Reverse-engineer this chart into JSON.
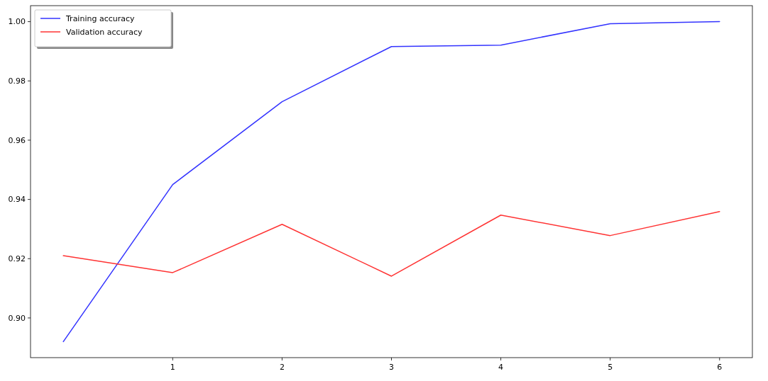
{
  "chart_data": {
    "type": "line",
    "x": [
      0,
      1,
      2,
      3,
      4,
      5,
      6
    ],
    "series": [
      {
        "name": "Training accuracy",
        "color": "#3333ff",
        "values": [
          0.892,
          0.945,
          0.973,
          0.9916,
          0.9921,
          0.9993,
          1.0
        ]
      },
      {
        "name": "Validation accuracy",
        "color": "#ff3333",
        "values": [
          0.921,
          0.9153,
          0.9316,
          0.9141,
          0.9347,
          0.9278,
          0.9359
        ]
      }
    ],
    "xlim": [
      -0.3,
      6.3
    ],
    "xticks": [
      1,
      2,
      3,
      4,
      5,
      6
    ],
    "ylim": [
      0.8866,
      1.0054
    ],
    "yticks": [
      {
        "value": 0.9,
        "label": "0.90"
      },
      {
        "value": 0.92,
        "label": "0.92"
      },
      {
        "value": 0.94,
        "label": "0.94"
      },
      {
        "value": 0.96,
        "label": "0.96"
      },
      {
        "value": 0.98,
        "label": "0.98"
      },
      {
        "value": 1.0,
        "label": "1.00"
      }
    ],
    "grid": false,
    "legend": "top left",
    "line_style": "solid",
    "marker": "none"
  }
}
